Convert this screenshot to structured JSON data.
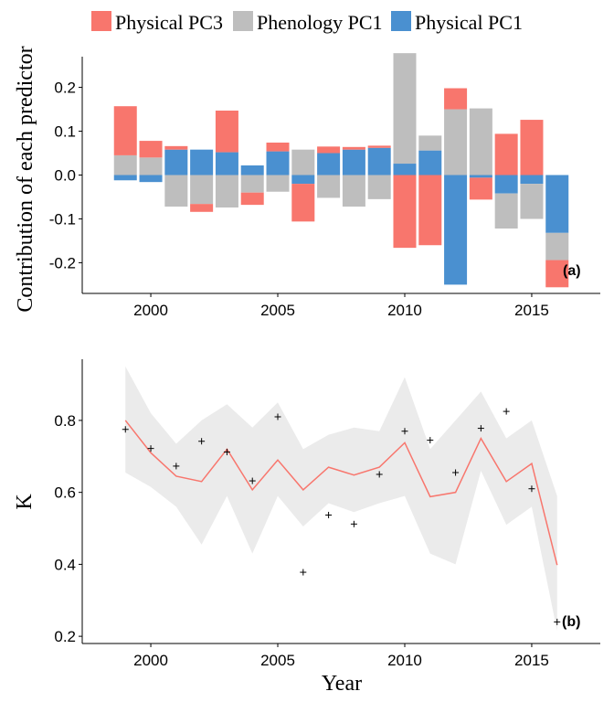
{
  "legend": {
    "position": "top",
    "items": [
      {
        "label": "Physical PC3",
        "color": "#F8766D"
      },
      {
        "label": "Phenology PC1",
        "color": "#BEBEBE"
      },
      {
        "label": "Physical PC1",
        "color": "#4A90D0"
      }
    ]
  },
  "chart_data": [
    {
      "type": "bar",
      "stacked": true,
      "panel_label": "(a)",
      "ylabel": "Contribution of each predictor",
      "xlabel": "",
      "ylim": [
        -0.27,
        0.27
      ],
      "xlim": [
        1997.3,
        2017.7
      ],
      "xticks": [
        "2000",
        "2005",
        "2010",
        "2015"
      ],
      "yticks": [
        "0.2",
        "0.1",
        "0.0",
        "-0.1",
        "-0.2"
      ],
      "grid": false,
      "x": [
        1999,
        2000,
        2001,
        2002,
        2003,
        2004,
        2005,
        2006,
        2007,
        2008,
        2009,
        2010,
        2011,
        2012,
        2013,
        2014,
        2015,
        2016
      ],
      "series": [
        {
          "name": "Physical PC1",
          "color": "#4A90D0",
          "values": [
            -0.012,
            -0.016,
            0.058,
            0.058,
            0.052,
            0.022,
            0.054,
            -0.02,
            0.05,
            0.058,
            0.062,
            0.026,
            0.056,
            -0.25,
            -0.006,
            -0.042,
            -0.02,
            -0.132
          ]
        },
        {
          "name": "Phenology PC1",
          "color": "#BEBEBE",
          "values": [
            0.045,
            0.04,
            -0.072,
            -0.066,
            -0.074,
            -0.04,
            -0.038,
            0.058,
            -0.052,
            -0.072,
            -0.055,
            0.252,
            0.034,
            0.15,
            0.152,
            -0.08,
            -0.08,
            -0.062
          ]
        },
        {
          "name": "Physical PC3",
          "color": "#F8766D",
          "values": [
            0.112,
            0.038,
            0.008,
            -0.018,
            0.095,
            -0.028,
            0.02,
            -0.086,
            0.015,
            0.006,
            0.005,
            -0.166,
            -0.16,
            0.048,
            -0.05,
            0.094,
            0.126,
            -0.062
          ]
        }
      ]
    },
    {
      "type": "line",
      "panel_label": "(b)",
      "ylabel": "K",
      "xlabel": "Year",
      "ylim": [
        0.18,
        0.97
      ],
      "xlim": [
        1997.3,
        2017.7
      ],
      "xticks": [
        "2000",
        "2005",
        "2010",
        "2015"
      ],
      "yticks": [
        "0.8",
        "0.6",
        "0.4",
        "0.2"
      ],
      "grid": false,
      "x": [
        1999,
        2000,
        2001,
        2002,
        2003,
        2004,
        2005,
        2006,
        2007,
        2008,
        2009,
        2010,
        2011,
        2012,
        2013,
        2014,
        2015,
        2016
      ],
      "fitted": [
        0.8,
        0.71,
        0.645,
        0.63,
        0.72,
        0.607,
        0.69,
        0.607,
        0.67,
        0.648,
        0.67,
        0.738,
        0.588,
        0.6,
        0.75,
        0.63,
        0.68,
        0.398
      ],
      "band_upper": [
        0.95,
        0.82,
        0.735,
        0.8,
        0.845,
        0.78,
        0.85,
        0.72,
        0.76,
        0.78,
        0.77,
        0.92,
        0.72,
        0.8,
        0.88,
        0.75,
        0.8,
        0.59
      ],
      "band_lower": [
        0.655,
        0.615,
        0.56,
        0.455,
        0.59,
        0.43,
        0.59,
        0.505,
        0.57,
        0.545,
        0.57,
        0.59,
        0.43,
        0.4,
        0.66,
        0.51,
        0.56,
        0.215
      ],
      "observed": [
        0.775,
        0.722,
        0.673,
        0.742,
        0.712,
        0.632,
        0.81,
        0.378,
        0.537,
        0.512,
        0.65,
        0.77,
        0.745,
        0.655,
        0.778,
        0.825,
        0.61,
        0.24
      ],
      "line_color": "#F8766D",
      "band_color": "#EBEBEB",
      "marker": "+"
    }
  ]
}
